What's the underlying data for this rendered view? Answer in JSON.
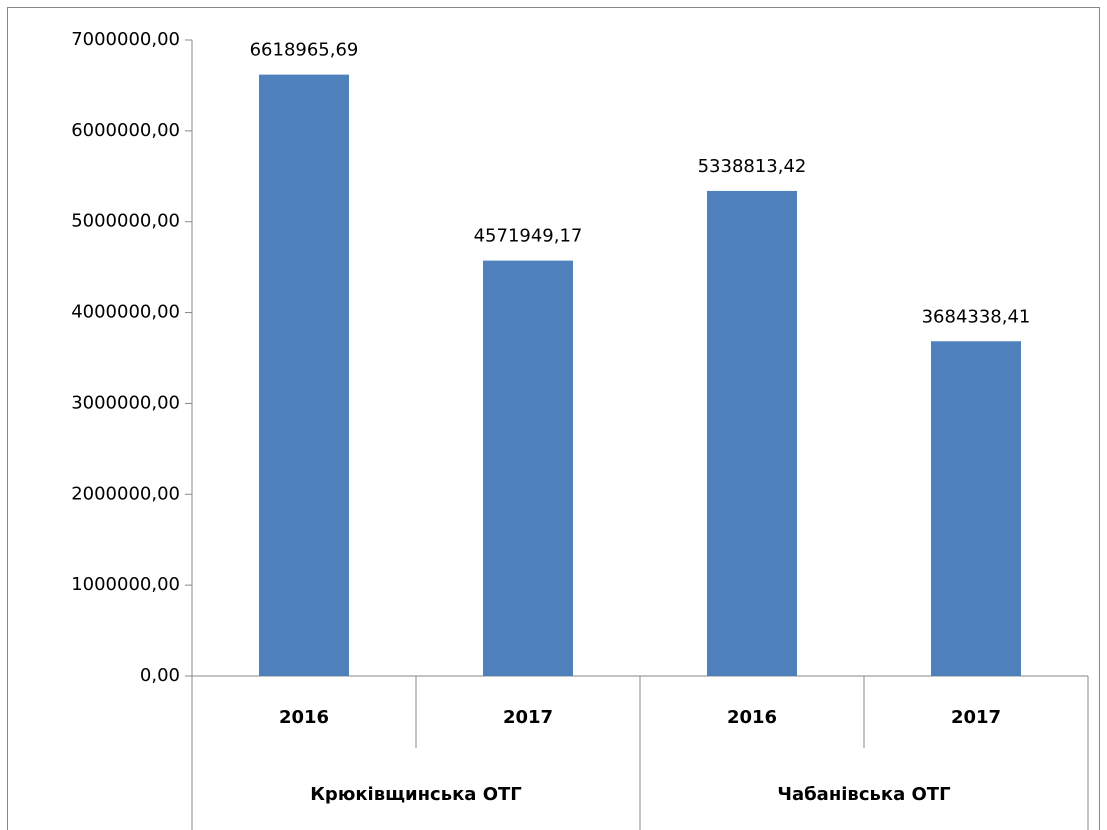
{
  "chart_data": {
    "type": "bar",
    "categories": [
      "2016",
      "2017",
      "2016",
      "2017"
    ],
    "category_groups": [
      "Крюківщинська ОТГ",
      "Чабанівська ОТГ"
    ],
    "values": [
      6618965.69,
      4571949.17,
      5338813.42,
      3684338.41
    ],
    "value_labels": [
      "6618965,69",
      "4571949,17",
      "5338813,42",
      "3684338,41"
    ],
    "color": "#4f81bd",
    "ylim": [
      0,
      7000000
    ],
    "yticks": [
      {
        "value": 0,
        "label": "0,00"
      },
      {
        "value": 1000000,
        "label": "1000000,00"
      },
      {
        "value": 2000000,
        "label": "2000000,00"
      },
      {
        "value": 3000000,
        "label": "3000000,00"
      },
      {
        "value": 4000000,
        "label": "4000000,00"
      },
      {
        "value": 5000000,
        "label": "5000000,00"
      },
      {
        "value": 6000000,
        "label": "6000000,00"
      },
      {
        "value": 7000000,
        "label": "7000000,00"
      }
    ],
    "grid": false
  }
}
